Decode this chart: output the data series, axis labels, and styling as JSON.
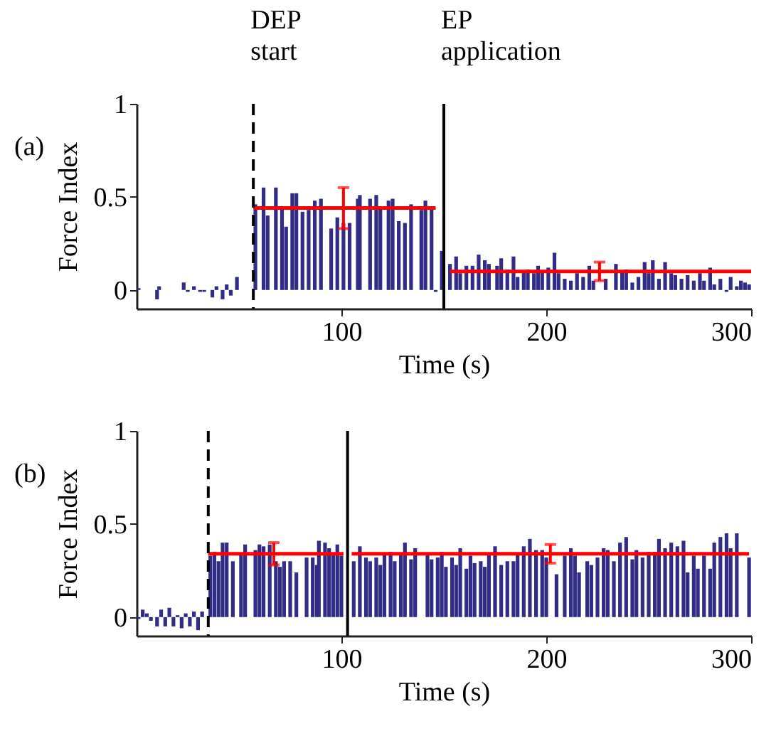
{
  "chart_data": [
    {
      "type": "bar",
      "title": "(a)",
      "xlabel": "Time (s)",
      "ylabel": "Force Index",
      "xlim": [
        0,
        300
      ],
      "ylim": [
        -0.1,
        1
      ],
      "xticks": [
        100,
        200,
        300
      ],
      "yticks": [
        0,
        0.5,
        1
      ],
      "grid": false,
      "series": [
        {
          "color": "#312c86",
          "x": [
            1,
            10,
            11,
            23,
            25,
            28,
            31,
            33,
            37,
            39,
            42,
            44,
            46,
            49,
            58,
            62,
            64,
            68,
            71,
            73,
            76,
            78,
            81,
            84,
            87,
            90,
            95,
            98,
            101,
            104,
            108,
            109,
            114,
            117,
            119,
            123,
            125,
            128,
            131,
            134,
            139,
            141,
            144,
            146,
            149,
            153,
            156,
            158,
            161,
            164,
            167,
            170,
            172,
            176,
            178,
            181,
            184,
            186,
            189,
            191,
            194,
            196,
            198,
            201,
            204,
            206,
            209,
            212,
            215,
            218,
            221,
            223,
            229,
            234,
            237,
            239,
            242,
            245,
            248,
            250,
            252,
            255,
            258,
            261,
            263,
            266,
            269,
            272,
            275,
            277,
            280,
            282,
            285,
            288,
            290,
            293,
            295,
            297,
            299
          ],
          "values": [
            0.01,
            -0.05,
            0.02,
            0.04,
            -0.01,
            0.02,
            -0.01,
            -0.01,
            -0.04,
            0.02,
            -0.05,
            0.03,
            -0.03,
            0.07,
            0.46,
            0.55,
            0.4,
            0.55,
            0.45,
            0.34,
            0.52,
            0.52,
            0.42,
            0.43,
            0.48,
            0.49,
            0.33,
            0.39,
            0.36,
            0.36,
            0.49,
            0.51,
            0.49,
            0.51,
            0.45,
            0.48,
            0.49,
            0.37,
            0.36,
            0.46,
            0.43,
            0.48,
            0.45,
            -0.01,
            0.21,
            0.14,
            0.18,
            0.09,
            0.13,
            0.13,
            0.19,
            0.16,
            0.14,
            0.13,
            0.17,
            0.11,
            0.18,
            0.07,
            0.1,
            0.11,
            0.09,
            0.13,
            0.1,
            0.12,
            0.2,
            0.09,
            0.06,
            0.05,
            0.09,
            0.07,
            0.13,
            0.05,
            0.06,
            0.14,
            0.1,
            0.11,
            0.04,
            0.07,
            0.15,
            0.09,
            0.16,
            0.06,
            0.15,
            0.09,
            0.08,
            0.06,
            0.08,
            0.05,
            0.09,
            0.05,
            0.12,
            0.03,
            0.06,
            -0.01,
            0.07,
            0.02,
            0.05,
            0.04,
            0.03
          ]
        },
        {
          "type": "line",
          "color": "#ff0000",
          "x": [
            57,
            101,
            146
          ],
          "values": [
            0.44,
            0.44,
            0.44
          ],
          "errors": [
            null,
            0.11,
            null
          ]
        },
        {
          "type": "line",
          "color": "#ff0000",
          "x": [
            153,
            226,
            300
          ],
          "values": [
            0.1,
            0.1,
            0.1
          ],
          "errors": [
            null,
            0.05,
            null
          ]
        }
      ],
      "ref_lines": [
        {
          "axis": "x",
          "value": 57,
          "label": "DEP start",
          "line_style": "dashed",
          "color": "#000000"
        },
        {
          "axis": "x",
          "value": 150,
          "label": "EP application",
          "line_style": "solid",
          "color": "#000000"
        }
      ]
    },
    {
      "type": "bar",
      "title": "(b)",
      "xlabel": "Time (s)",
      "ylabel": "Force Index",
      "xlim": [
        0,
        300
      ],
      "ylim": [
        -0.1,
        1
      ],
      "xticks": [
        100,
        200,
        300
      ],
      "yticks": [
        0,
        0.5,
        1
      ],
      "grid": false,
      "series": [
        {
          "color": "#312c86",
          "x": [
            1,
            3,
            5,
            7,
            10,
            12,
            14,
            16,
            18,
            20,
            22,
            24,
            26,
            28,
            30,
            32,
            36,
            38,
            40,
            42,
            44,
            47,
            51,
            53,
            58,
            60,
            62,
            65,
            68,
            70,
            72,
            75,
            78,
            83,
            86,
            88,
            89,
            92,
            94,
            96,
            98,
            100,
            106,
            109,
            112,
            114,
            117,
            119,
            121,
            124,
            126,
            129,
            131,
            134,
            136,
            142,
            144,
            147,
            149,
            151,
            154,
            156,
            158,
            161,
            163,
            165,
            168,
            170,
            172,
            175,
            178,
            181,
            184,
            186,
            189,
            192,
            195,
            198,
            200,
            205,
            209,
            212,
            214,
            216,
            220,
            222,
            225,
            228,
            230,
            233,
            236,
            239,
            242,
            244,
            247,
            250,
            253,
            255,
            258,
            261,
            264,
            267,
            269,
            272,
            274,
            277,
            280,
            282,
            285,
            288,
            290,
            293,
            299
          ],
          "values": [
            -0.01,
            0.04,
            0.02,
            -0.02,
            -0.05,
            0.04,
            -0.05,
            0.05,
            -0.05,
            0.01,
            -0.06,
            0.02,
            -0.05,
            0.03,
            -0.07,
            0.03,
            0.33,
            0.35,
            0.3,
            0.4,
            0.4,
            0.3,
            0.34,
            0.39,
            0.36,
            0.39,
            0.38,
            0.39,
            0.3,
            0.27,
            0.3,
            0.3,
            0.24,
            0.32,
            0.32,
            0.28,
            0.41,
            0.4,
            0.37,
            0.34,
            0.39,
            0.33,
            0.3,
            0.38,
            0.32,
            0.3,
            0.32,
            0.28,
            0.34,
            0.35,
            0.3,
            0.34,
            0.4,
            0.31,
            0.37,
            0.34,
            0.31,
            0.32,
            0.35,
            0.27,
            0.32,
            0.28,
            0.37,
            0.26,
            0.33,
            0.29,
            0.3,
            0.27,
            0.34,
            0.38,
            0.28,
            0.3,
            0.3,
            0.34,
            0.38,
            0.42,
            0.36,
            0.36,
            0.32,
            0.23,
            0.33,
            0.37,
            0.33,
            0.24,
            0.3,
            0.28,
            0.32,
            0.37,
            0.36,
            0.3,
            0.4,
            0.43,
            0.31,
            0.36,
            0.32,
            0.35,
            0.35,
            0.42,
            0.37,
            0.4,
            0.38,
            0.41,
            0.24,
            0.33,
            0.26,
            0.33,
            0.26,
            0.4,
            0.43,
            0.45,
            0.37,
            0.45,
            0.32
          ]
        },
        {
          "type": "line",
          "color": "#ff0000",
          "x": [
            35,
            67,
            101
          ],
          "values": [
            0.34,
            0.34,
            0.34
          ],
          "errors": [
            null,
            0.06,
            null
          ]
        },
        {
          "type": "line",
          "color": "#ff0000",
          "x": [
            105,
            202,
            299
          ],
          "values": [
            0.34,
            0.34,
            0.34
          ],
          "errors": [
            null,
            0.05,
            null
          ]
        }
      ],
      "ref_lines": [
        {
          "axis": "x",
          "value": 35,
          "line_style": "dashed",
          "color": "#000000"
        },
        {
          "axis": "x",
          "value": 103,
          "line_style": "solid",
          "color": "#000000"
        }
      ]
    }
  ]
}
